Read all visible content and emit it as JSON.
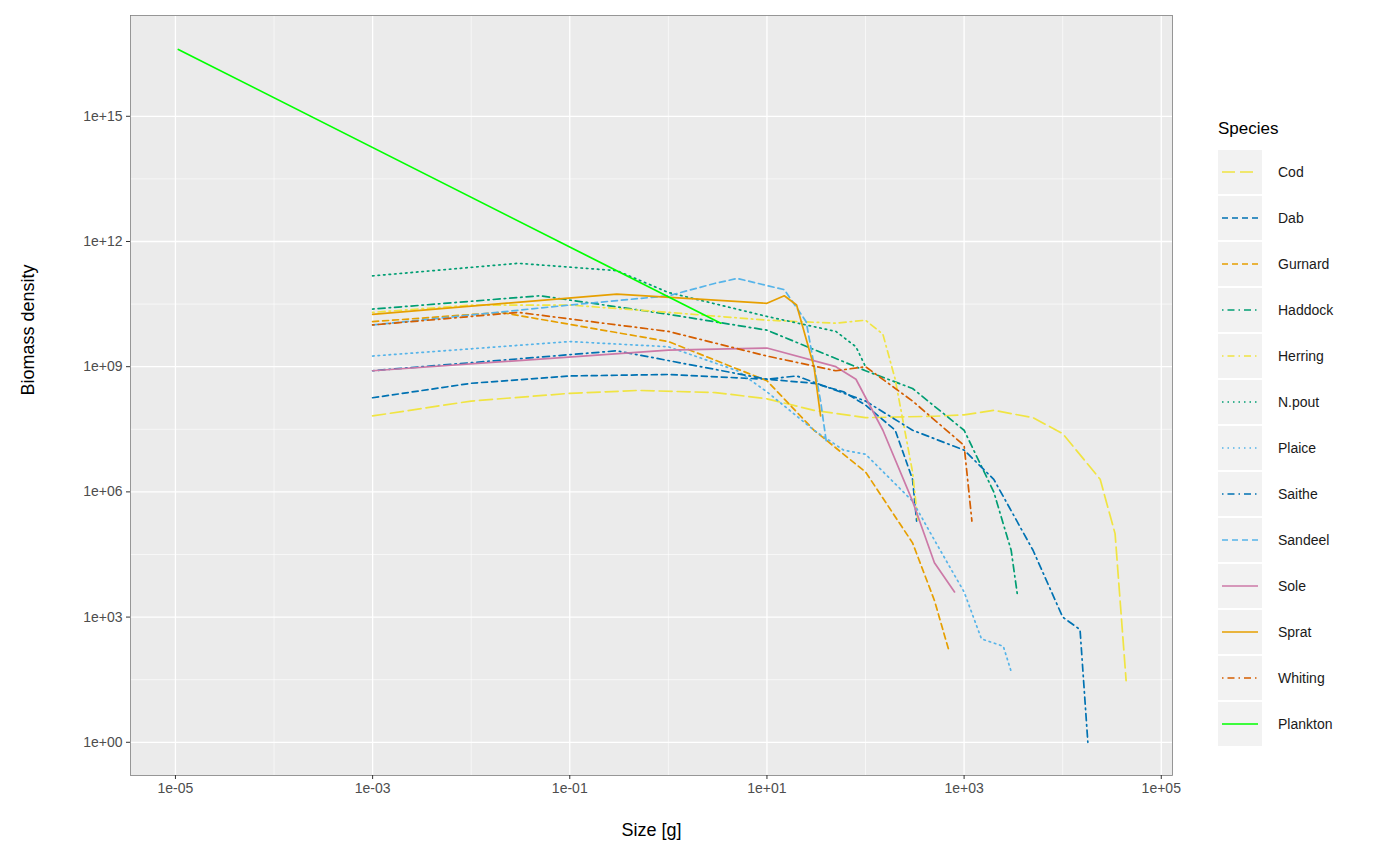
{
  "chart_data": {
    "type": "line",
    "x_label": "Size [g]",
    "y_label": "Biomass density",
    "legend_title": "Species",
    "log": true,
    "grid": true,
    "legend": "right",
    "xlim": [
      3.5e-06,
      130000.0
    ],
    "ylim": [
      0.16,
      2.6e+17
    ],
    "xticks": [
      {
        "value": 1e-05,
        "label": "1e-05"
      },
      {
        "value": 0.001,
        "label": "1e-03"
      },
      {
        "value": 0.1,
        "label": "1e-01"
      },
      {
        "value": 10.0,
        "label": "1e+01"
      },
      {
        "value": 1000.0,
        "label": "1e+03"
      },
      {
        "value": 100000.0,
        "label": "1e+05"
      }
    ],
    "yticks": [
      {
        "value": 1,
        "label": "1e+00"
      },
      {
        "value": 1000.0,
        "label": "1e+03"
      },
      {
        "value": 1000000.0,
        "label": "1e+06"
      },
      {
        "value": 1000000000.0,
        "label": "1e+09"
      },
      {
        "value": 1000000000000.0,
        "label": "1e+12"
      },
      {
        "value": 1000000000000000.0,
        "label": "1e+15"
      }
    ],
    "series": [
      {
        "name": "Cod",
        "color": "#F0E442",
        "line_style": "longdash",
        "x": [
          0.001,
          0.01,
          0.1,
          0.5,
          3,
          10,
          30,
          100,
          500,
          1000,
          2000,
          5000,
          10000,
          24000,
          34000,
          44000
        ],
        "values": [
          66000000.0,
          150000000.0,
          230000000.0,
          270000000.0,
          240000000.0,
          170000000.0,
          90000000.0,
          60000000.0,
          65000000.0,
          70000000.0,
          90000000.0,
          60000000.0,
          25000000.0,
          2000000.0,
          100000.0,
          30
        ]
      },
      {
        "name": "Dab",
        "color": "#0072B2",
        "line_style": "dashed",
        "x": [
          0.001,
          0.01,
          0.1,
          1,
          10,
          30,
          60,
          100,
          200,
          300,
          330
        ],
        "values": [
          180000000.0,
          400000000.0,
          600000000.0,
          650000000.0,
          500000000.0,
          400000000.0,
          250000000.0,
          120000000.0,
          30000000.0,
          2000000.0,
          200000.0
        ]
      },
      {
        "name": "Gurnard",
        "color": "#E69F00",
        "line_style": "dashed",
        "x": [
          0.001,
          0.02,
          1,
          10,
          30,
          100,
          300,
          500,
          700
        ],
        "values": [
          12000000000.0,
          20000000000.0,
          4000000000.0,
          460000000.0,
          30000000.0,
          3000000.0,
          60000.0,
          2500.0,
          160
        ]
      },
      {
        "name": "Haddock",
        "color": "#009E73",
        "line_style": "dotdash",
        "x": [
          0.001,
          0.05,
          1,
          10,
          100,
          300,
          1000,
          2000,
          3000,
          3500
        ],
        "values": [
          24000000000.0,
          50000000000.0,
          18000000000.0,
          7500000000.0,
          800000000.0,
          300000000.0,
          30000000.0,
          1000000.0,
          40000.0,
          3000.0
        ]
      },
      {
        "name": "Herring",
        "color": "#F0E442",
        "line_style": "dotdash",
        "x": [
          0.001,
          0.01,
          0.1,
          1,
          10,
          50,
          100,
          150,
          200,
          300,
          340
        ],
        "values": [
          20000000000.0,
          30000000000.0,
          30000000000.0,
          20000000000.0,
          13000000000.0,
          11000000000.0,
          13000000000.0,
          6000000000.0,
          500000000.0,
          3000000.0,
          200000.0
        ]
      },
      {
        "name": "N.pout",
        "color": "#009E73",
        "line_style": "dotted",
        "x": [
          0.001,
          0.03,
          0.3,
          1,
          10,
          50,
          80,
          100
        ],
        "values": [
          150000000000.0,
          300000000000.0,
          200000000000.0,
          60000000000.0,
          16000000000.0,
          7000000000.0,
          3000000000.0,
          1000000000.0
        ]
      },
      {
        "name": "Plaice",
        "color": "#56B4E9",
        "line_style": "dotted",
        "x": [
          0.001,
          0.1,
          1,
          5,
          10,
          30,
          60,
          100,
          300,
          500,
          1000,
          1500,
          2500,
          3000
        ],
        "values": [
          1800000000.0,
          4000000000.0,
          3000000000.0,
          800000000.0,
          250000000.0,
          30000000.0,
          10000000.0,
          8000000.0,
          600000.0,
          70000.0,
          4000.0,
          300,
          200,
          50
        ]
      },
      {
        "name": "Saithe",
        "color": "#0072B2",
        "line_style": "dotdash",
        "x": [
          0.001,
          0.3,
          10,
          20,
          100,
          300,
          1000,
          2000,
          5000,
          10000,
          15000,
          18000
        ],
        "values": [
          800000000.0,
          2400000000.0,
          500000000.0,
          600000000.0,
          150000000.0,
          30000000.0,
          10000000.0,
          2000000.0,
          40000.0,
          1000.0,
          500,
          1
        ]
      },
      {
        "name": "Sandeel",
        "color": "#56B4E9",
        "line_style": "dashed",
        "x": [
          0.001,
          0.1,
          1,
          3,
          5,
          15,
          25,
          35,
          40
        ],
        "values": [
          10000000000.0,
          30000000000.0,
          50000000000.0,
          100000000000.0,
          130000000000.0,
          70000000000.0,
          12000000000.0,
          150000000.0,
          16000000.0
        ]
      },
      {
        "name": "Sole",
        "color": "#CC79A7",
        "line_style": "solid",
        "x": [
          0.001,
          1,
          10,
          50,
          80,
          150,
          300,
          500,
          800
        ],
        "values": [
          800000000.0,
          2500000000.0,
          2800000000.0,
          1000000000.0,
          500000000.0,
          30000000.0,
          600000.0,
          20000.0,
          4000.0
        ]
      },
      {
        "name": "Sprat",
        "color": "#E69F00",
        "line_style": "solid",
        "x": [
          0.001,
          0.3,
          10,
          15,
          20,
          30,
          35
        ],
        "values": [
          18000000000.0,
          55000000000.0,
          33000000000.0,
          50000000000.0,
          30000000000.0,
          1000000000.0,
          66000000.0
        ]
      },
      {
        "name": "Whiting",
        "color": "#D55E00",
        "line_style": "dotdash",
        "x": [
          0.001,
          0.03,
          1,
          10,
          50,
          100,
          300,
          1000,
          1200
        ],
        "values": [
          10000000000.0,
          20000000000.0,
          7000000000.0,
          1800000000.0,
          800000000.0,
          1000000000.0,
          150000000.0,
          13000000.0,
          200000.0
        ]
      },
      {
        "name": "Plankton",
        "color": "#00FF00",
        "line_style": "solid",
        "x": [
          1.07e-05,
          3.4
        ],
        "values": [
          4e+16,
          11000000000.0
        ]
      }
    ]
  }
}
